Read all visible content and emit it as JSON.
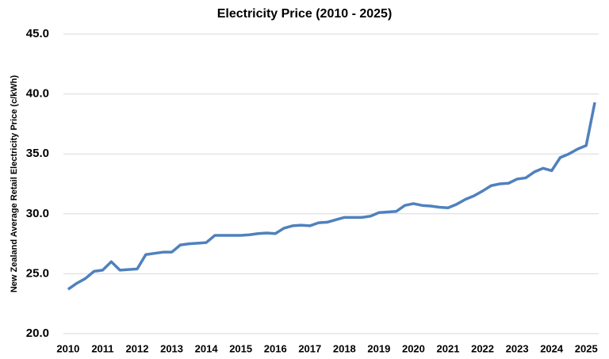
{
  "chart_data": {
    "type": "line",
    "title": "Electricity Price (2010  - 2025)",
    "y_label": "New Zealand Average Retail Electricity  Price (c/kWh)",
    "x": [
      2010,
      2010.25,
      2010.5,
      2010.75,
      2011,
      2011.25,
      2011.5,
      2011.75,
      2012,
      2012.25,
      2012.5,
      2012.75,
      2013,
      2013.25,
      2013.5,
      2013.75,
      2014,
      2014.25,
      2014.5,
      2014.75,
      2015,
      2015.25,
      2015.5,
      2015.75,
      2016,
      2016.25,
      2016.5,
      2016.75,
      2017,
      2017.25,
      2017.5,
      2017.75,
      2018,
      2018.25,
      2018.5,
      2018.75,
      2019,
      2019.25,
      2019.5,
      2019.75,
      2020,
      2020.25,
      2020.5,
      2020.75,
      2021,
      2021.25,
      2021.5,
      2021.75,
      2022,
      2022.25,
      2022.5,
      2022.75,
      2023,
      2023.25,
      2023.5,
      2023.75,
      2024,
      2024.25,
      2024.5,
      2024.75,
      2025,
      2025.25
    ],
    "series": [
      {
        "color": "#4f81bd",
        "values": [
          23.7,
          24.2,
          24.6,
          25.2,
          25.3,
          26.0,
          25.3,
          25.35,
          25.4,
          26.6,
          26.7,
          26.8,
          26.8,
          27.4,
          27.5,
          27.55,
          27.6,
          28.2,
          28.2,
          28.2,
          28.2,
          28.25,
          28.35,
          28.4,
          28.35,
          28.8,
          29.0,
          29.05,
          29.0,
          29.25,
          29.3,
          29.5,
          29.7,
          29.7,
          29.7,
          29.8,
          30.1,
          30.15,
          30.2,
          30.7,
          30.85,
          30.7,
          30.65,
          30.55,
          30.5,
          30.8,
          31.2,
          31.5,
          31.9,
          32.35,
          32.5,
          32.55,
          32.9,
          33.0,
          33.5,
          33.8,
          33.6,
          34.7,
          35.0,
          35.4,
          35.7,
          39.3
        ]
      }
    ],
    "xlim": [
      2009.75,
      2025.5
    ],
    "xticks": [
      2010,
      2011,
      2012,
      2013,
      2014,
      2015,
      2016,
      2017,
      2018,
      2019,
      2020,
      2021,
      2022,
      2023,
      2024,
      2025
    ],
    "ylim": [
      20,
      45
    ],
    "yticks": [
      {
        "value": 20,
        "label": "20.0"
      },
      {
        "value": 25,
        "label": "25.0"
      },
      {
        "value": 30,
        "label": "30.0"
      },
      {
        "value": 35,
        "label": "35.0"
      },
      {
        "value": 40,
        "label": "40.0"
      },
      {
        "value": 45,
        "label": "45.0"
      }
    ],
    "grid": true
  }
}
